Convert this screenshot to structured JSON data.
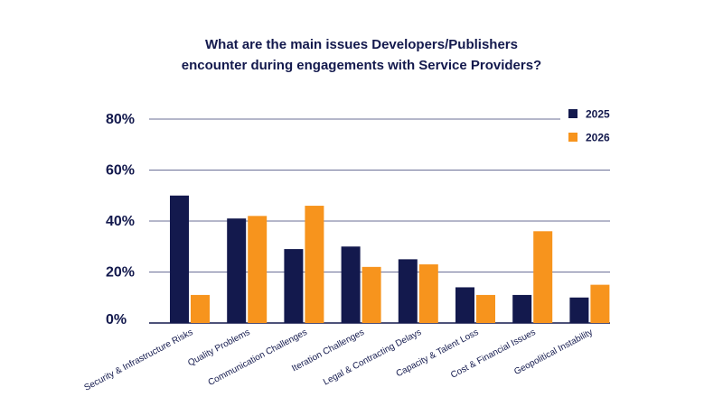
{
  "chart_data": {
    "type": "bar",
    "title_lines": [
      "What are the main issues Developers/Publishers",
      "encounter during engagements with Service Providers?"
    ],
    "categories": [
      "Security & Infrastructure Risks",
      "Quality Problems",
      "Communication Challenges",
      "Iteration Challenges",
      "Legal & Contracting Delays",
      "Capacity & Talent Loss",
      "Cost & Financial Issues",
      "Geopolitical Instability"
    ],
    "series": [
      {
        "name": "2025",
        "color": "#13194d",
        "values": [
          50,
          41,
          29,
          30,
          25,
          14,
          11,
          10
        ]
      },
      {
        "name": "2026",
        "color": "#f7941d",
        "values": [
          11,
          42,
          46,
          22,
          23,
          11,
          36,
          15
        ]
      }
    ],
    "y_ticks": [
      "0%",
      "20%",
      "40%",
      "60%",
      "80%"
    ],
    "ylim": [
      0,
      80
    ],
    "grid": true,
    "legend_position": "top-right",
    "xlabel": "",
    "ylabel": ""
  }
}
